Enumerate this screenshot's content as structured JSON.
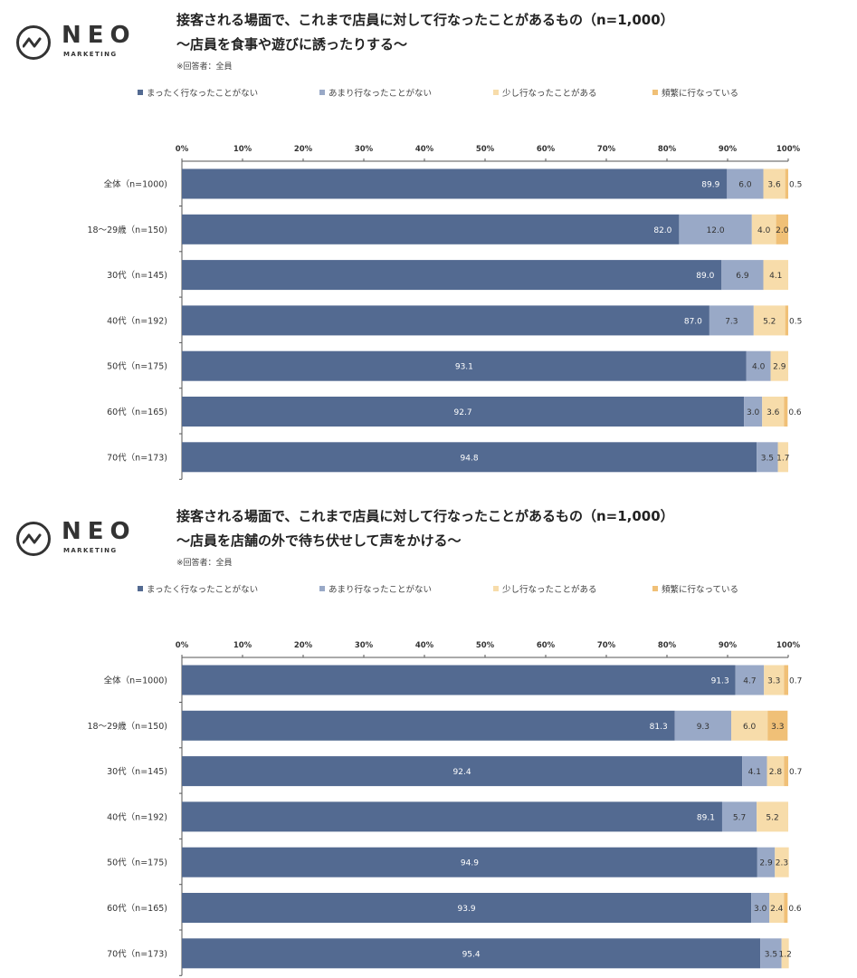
{
  "brand": {
    "name": "NEO",
    "sub": "MARKETING"
  },
  "colors": [
    "#536a91",
    "#99a9c7",
    "#f7dcaa",
    "#f0c077"
  ],
  "chart_data": [
    {
      "type": "bar",
      "orientation": "horizontal",
      "stacked": true,
      "title_line1": "接客される場面で、これまで店員に対して行なったことがあるもの（n=1,000）",
      "title_line2": "〜店員を食事や遊びに誘ったりする〜",
      "note": "※回答者：全員",
      "xlim": [
        0,
        100
      ],
      "ticks": [
        "0%",
        "10%",
        "20%",
        "30%",
        "40%",
        "50%",
        "60%",
        "70%",
        "80%",
        "90%",
        "100%"
      ],
      "categories": [
        "全体（n=1000)",
        "18〜29歳（n=150)",
        "30代（n=145)",
        "40代（n=192)",
        "50代（n=175)",
        "60代（n=165)",
        "70代（n=173)"
      ],
      "series": [
        {
          "name": "まったく行なったことがない",
          "values": [
            89.9,
            82.0,
            89.0,
            87.0,
            93.1,
            92.7,
            94.8
          ],
          "labels": [
            "89.9",
            "82.0",
            "89.0",
            "87.0",
            "93.1",
            "92.7",
            "94.8"
          ]
        },
        {
          "name": "あまり行なったことがない",
          "values": [
            6.0,
            12.0,
            6.9,
            7.3,
            4.0,
            3.0,
            3.5
          ],
          "labels": [
            "6.0",
            "12.0",
            "6.9",
            "7.3",
            "4.0",
            "3.0",
            "3.5"
          ]
        },
        {
          "name": "少し行なったことがある",
          "values": [
            3.6,
            4.0,
            4.1,
            5.2,
            2.9,
            3.6,
            1.7
          ],
          "labels": [
            "3.6",
            "4.0",
            "4.1",
            "5.2",
            "2.9",
            "3.6",
            "1.7"
          ]
        },
        {
          "name": "頻繁に行なっている",
          "values": [
            0.5,
            2.0,
            0,
            0.5,
            0,
            0.6,
            0
          ],
          "labels": [
            "0.5",
            "2.0",
            "",
            "0.5",
            "",
            "0.6",
            ""
          ]
        }
      ]
    },
    {
      "type": "bar",
      "orientation": "horizontal",
      "stacked": true,
      "title_line1": "接客される場面で、これまで店員に対して行なったことがあるもの（n=1,000）",
      "title_line2": "〜店員を店舗の外で待ち伏せして声をかける〜",
      "note": "※回答者：全員",
      "xlim": [
        0,
        100
      ],
      "ticks": [
        "0%",
        "10%",
        "20%",
        "30%",
        "40%",
        "50%",
        "60%",
        "70%",
        "80%",
        "90%",
        "100%"
      ],
      "categories": [
        "全体（n=1000)",
        "18〜29歳（n=150)",
        "30代（n=145)",
        "40代（n=192)",
        "50代（n=175)",
        "60代（n=165)",
        "70代（n=173)"
      ],
      "series": [
        {
          "name": "まったく行なったことがない",
          "values": [
            91.3,
            81.3,
            92.4,
            89.1,
            94.9,
            93.9,
            95.4
          ],
          "labels": [
            "91.3",
            "81.3",
            "92.4",
            "89.1",
            "94.9",
            "93.9",
            "95.4"
          ]
        },
        {
          "name": "あまり行なったことがない",
          "values": [
            4.7,
            9.3,
            4.1,
            5.7,
            2.9,
            3.0,
            3.5
          ],
          "labels": [
            "4.7",
            "9.3",
            "4.1",
            "5.7",
            "2.9",
            "3.0",
            "3.5"
          ]
        },
        {
          "name": "少し行なったことがある",
          "values": [
            3.3,
            6.0,
            2.8,
            5.2,
            2.3,
            2.4,
            1.2
          ],
          "labels": [
            "3.3",
            "6.0",
            "2.8",
            "5.2",
            "2.3",
            "2.4",
            "1.2"
          ]
        },
        {
          "name": "頻繁に行なっている",
          "values": [
            0.7,
            3.3,
            0.7,
            0,
            0,
            0.6,
            0
          ],
          "labels": [
            "0.7",
            "3.3",
            "0.7",
            "",
            "",
            "0.6",
            ""
          ]
        }
      ]
    }
  ]
}
